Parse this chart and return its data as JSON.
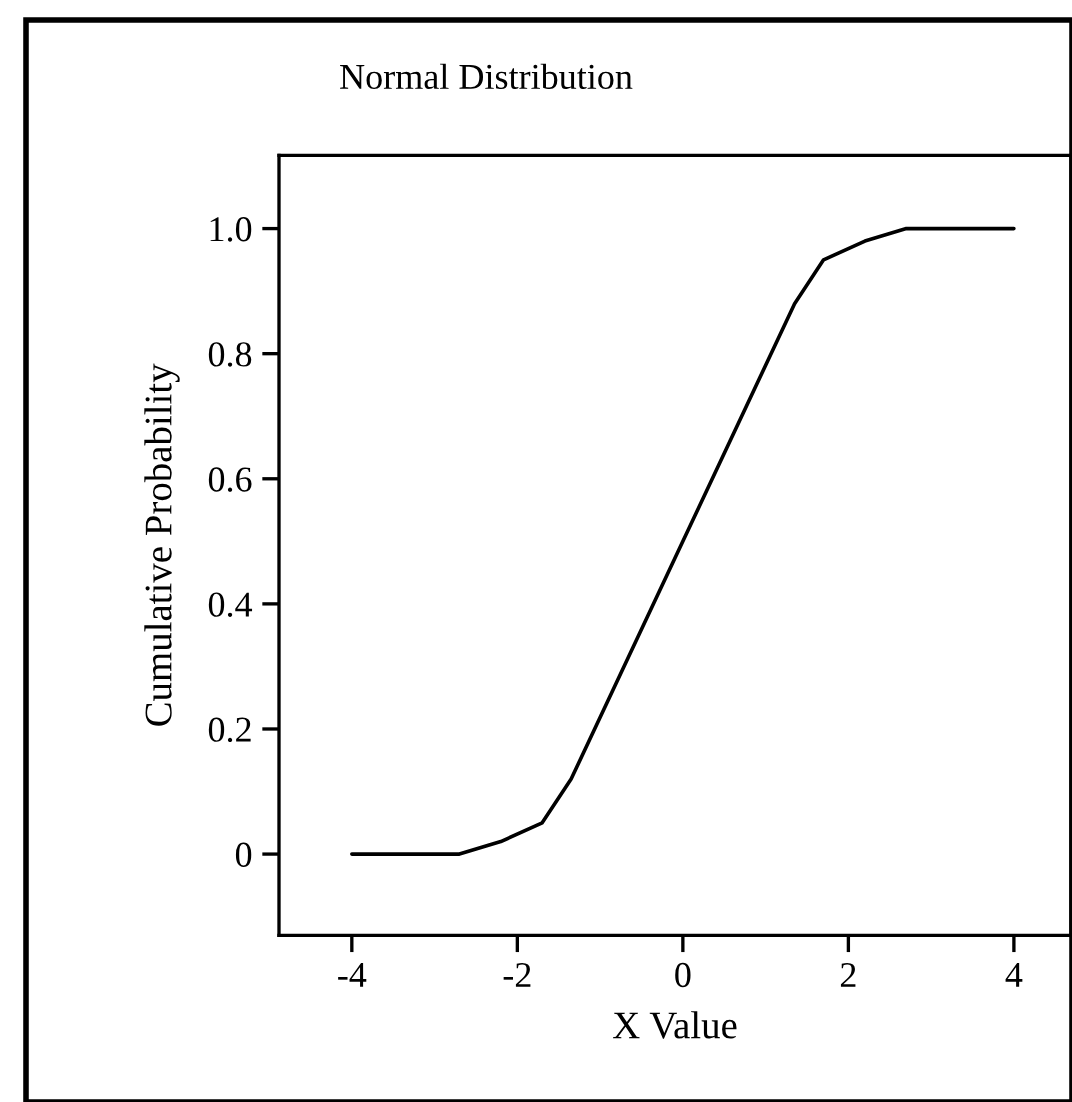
{
  "chart_data": {
    "type": "line",
    "title": "Normal Distribution",
    "xlabel": "X Value",
    "ylabel": "Cumulative Probability",
    "x": [
      -4,
      -2.7,
      -2.2,
      -1.7,
      -1.35,
      0,
      1.35,
      1.7,
      2.2,
      2.7,
      4
    ],
    "series": [
      {
        "color": "#000000",
        "values": [
          0,
          0,
          0.02,
          0.05,
          0.12,
          0.5,
          0.88,
          0.95,
          0.98,
          1,
          1
        ]
      }
    ],
    "xlim": [
      -4.88,
      4.69
    ],
    "xticks": [
      {
        "value": -4,
        "label": "-4"
      },
      {
        "value": -2,
        "label": "-2"
      },
      0,
      2,
      4
    ],
    "ylim": [
      -0.13,
      1.117
    ],
    "yticks": [
      0,
      0.2,
      0.4,
      0.6,
      0.8,
      {
        "value": 1,
        "label": "1.0"
      }
    ],
    "grid": false,
    "legend": false,
    "marker": "none",
    "line_style": "solid"
  }
}
